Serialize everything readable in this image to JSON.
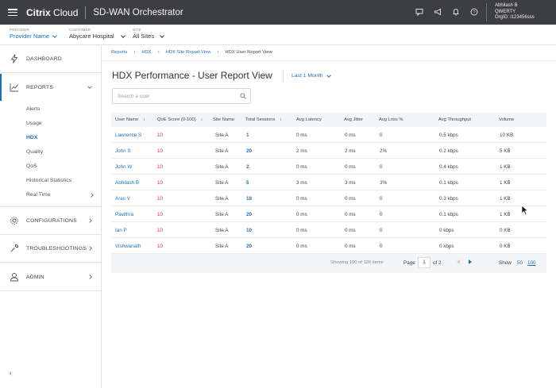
{
  "app": {
    "brand_bold": "Citrix",
    "brand_light": " Cloud",
    "product": "SD-WAN Orchestrator"
  },
  "user": {
    "name": "Abhilash B",
    "org": "QWERTY",
    "org_id": "OrgID: i123456sss"
  },
  "top_icons": [
    "chat-icon",
    "megaphone-icon",
    "bell-icon",
    "help-icon"
  ],
  "context": {
    "provider": {
      "label": "PROVIDER",
      "value": "Provider Name"
    },
    "customer": {
      "label": "CUSTOMER",
      "value": "Abycare Hospital"
    },
    "site": {
      "label": "SITE",
      "value": "All Sites"
    }
  },
  "sidebar": {
    "dashboard": "DASHBOARD",
    "reports": "REPORTS",
    "sub": [
      "Alerts",
      "Usage",
      "HDX",
      "Quality",
      "QoS",
      "Historical Statistics",
      "Real Time"
    ],
    "configurations": "CONFIGURATIONS",
    "troubleshootings": "TROUBLESHOOTINGS",
    "admin": "ADMIN",
    "collapse": "‹"
  },
  "breadcrumb": [
    "Reports",
    "HDX",
    "HDX Site Report View",
    "HDX User Report View"
  ],
  "page": {
    "title": "HDX Performance - User Report View",
    "range": "Last 1 Month"
  },
  "search": {
    "placeholder": "Search a user"
  },
  "table": {
    "headers": [
      "User Name",
      "QoE Score (0-100)",
      "Site Name",
      "Total Sessions",
      "Avg Latency",
      "Avg Jitter",
      "Avg Loss %",
      "Avg Throughput",
      "Volume"
    ],
    "rows": [
      [
        "Lawrence S",
        "10",
        "Site A",
        "1",
        "0 ms",
        "0 ms",
        "0",
        "0.5 kbps",
        "10 KB"
      ],
      [
        "John S",
        "10",
        "Site A",
        "20",
        "2 ms",
        "2 ms",
        "2%",
        "0.2 kbps",
        "5 KB"
      ],
      [
        "John W",
        "10",
        "Site A",
        "2",
        "0 ms",
        "0 ms",
        "0",
        "0.4 kbps",
        "1 KB"
      ],
      [
        "Abhilash B",
        "10",
        "Site A",
        "5",
        "3 ms",
        "3 ms",
        "3%",
        "0.1 kbps",
        "1 KB"
      ],
      [
        "Aras V",
        "10",
        "Site A",
        "18",
        "0 ms",
        "0 ms",
        "0",
        "0.3 kbps",
        "1 KB"
      ],
      [
        "Pavithra",
        "10",
        "Site A",
        "20",
        "0 ms",
        "0 ms",
        "0",
        "0.1 kbps",
        "1 KB"
      ],
      [
        "Ian P",
        "10",
        "Site A",
        "10",
        "0 ms",
        "0 ms",
        "0",
        "0 kbps",
        "0 KB"
      ],
      [
        "Vishwanath",
        "10",
        "Site A",
        "20",
        "0 ms",
        "0 ms",
        "0",
        "0 kbps",
        "0 KB"
      ]
    ],
    "footer": {
      "showing": "Showing 100 of 126 items",
      "page_label": "Page",
      "page_value": "1",
      "of": "of 2",
      "show_label": "Show",
      "opt50": "50",
      "opt100": "100"
    }
  },
  "colors": {
    "topbar": "#3d3d45",
    "accent": "#1f6fb5",
    "qoe": "#d0312d"
  }
}
